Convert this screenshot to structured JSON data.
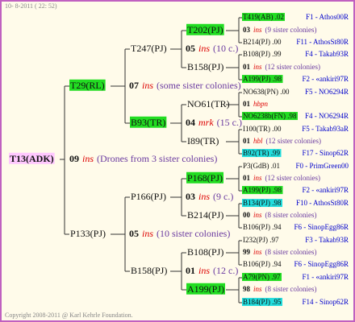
{
  "header": {
    "timestamp": "10- 8-2011 ( 22: 52)"
  },
  "root": {
    "label": "T13(ADK)",
    "highlight": "#ffc8ff",
    "num": "09",
    "mark": "ins",
    "note": "(Drones from 3 sister colonies)"
  },
  "gen1": [
    {
      "label": "T29(RL)",
      "highlight": "#22dd22",
      "num": "07",
      "mark": "ins",
      "note": "(some sister colonies)"
    },
    {
      "label": "P133(PJ)",
      "num": "05",
      "mark": "ins",
      "note": "(10 sister colonies)"
    }
  ],
  "gen2": [
    {
      "label": "T247(PJ)",
      "num": "05",
      "mark": "ins",
      "note": "(10 c.)"
    },
    {
      "label": "B93(TR)",
      "highlight": "#22dd22",
      "num": "04",
      "mark": "mrk",
      "note": "(15 c.)"
    },
    {
      "label": "P166(PJ)",
      "num": "03",
      "mark": "ins",
      "note": "(9 c.)"
    },
    {
      "label": "B158(PJ)",
      "num": "01",
      "mark": "ins",
      "note": "(12 c.)"
    }
  ],
  "gen3": [
    {
      "label": "T202(PJ)",
      "highlight": "#22dd22"
    },
    {
      "label": "B158(PJ)"
    },
    {
      "label": "NO61(TR)"
    },
    {
      "label": "I89(TR)"
    },
    {
      "label": "P168(PJ)",
      "highlight": "#22dd22"
    },
    {
      "label": "B214(PJ)"
    },
    {
      "label": "B108(PJ)"
    },
    {
      "label": "A199(PJ)",
      "highlight": "#22dd22"
    }
  ],
  "gen4": [
    {
      "top": {
        "id": "T419(AB) .02",
        "highlight": "#22dd22",
        "info": "F1 - Athos00R"
      },
      "mid": {
        "num": "03",
        "mark": "ins",
        "note": "(9 sister colonies)"
      },
      "bottom": {
        "id": "B214(PJ) .00",
        "info": "F11 - AthosSt80R"
      }
    },
    {
      "top": {
        "id": "B108(PJ) .99",
        "info": "F4 - Takab93R"
      },
      "mid": {
        "num": "01",
        "mark": "ins",
        "note": "(12 sister colonies)"
      },
      "bottom": {
        "id": "A199(PJ) .98",
        "highlight": "#22dd22",
        "info": "F2 - «ankiri97R"
      }
    },
    {
      "top": {
        "id": "NO638(PN) .00",
        "info": "F5 - NO6294R"
      },
      "mid": {
        "num": "01",
        "mark": "hbpn"
      },
      "bottom": {
        "id": "NO6238b(FN) .98",
        "highlight": "#22dd22",
        "info": "F4 - NO6294R"
      }
    },
    {
      "top": {
        "id": "I100(TR) .00",
        "info": "F5 - Takab93aR"
      },
      "mid": {
        "num": "01",
        "mark": "hbl",
        "note": "(12 sister colonies)"
      },
      "bottom": {
        "id": "B92(TR) .99",
        "highlight": "#22dddd",
        "info": "F17 - Sinop62R"
      }
    },
    {
      "top": {
        "id": "P3(GdB) .01",
        "info": "F0 - PrimGreen00"
      },
      "mid": {
        "num": "01",
        "mark": "ins",
        "note": "(12 sister colonies)"
      },
      "bottom": {
        "id": "A199(PJ) .98",
        "highlight": "#22dd22",
        "info": "F2 - «ankiri97R"
      }
    },
    {
      "top": {
        "id": "B134(PJ) .98",
        "highlight": "#22dddd",
        "info": "F10 - AthosSt80R"
      },
      "mid": {
        "num": "00",
        "mark": "ins",
        "note": "(8 sister colonies)"
      },
      "bottom": {
        "id": "B106(PJ) .94",
        "info": "F6 - SinopEgg86R"
      }
    },
    {
      "top": {
        "id": "I232(PJ) .97",
        "info": "F3 - Takab93R"
      },
      "mid": {
        "num": "99",
        "mark": "ins",
        "note": "(8 sister colonies)"
      },
      "bottom": {
        "id": "B106(PJ) .94",
        "info": "F6 - SinopEgg86R"
      }
    },
    {
      "top": {
        "id": "A79(PN) .97",
        "highlight": "#22dd22",
        "info": "F1 - «ankiri97R"
      },
      "mid": {
        "num": "98",
        "mark": "ins",
        "note": "(8 sister colonies)"
      },
      "bottom": {
        "id": "B184(PJ) .95",
        "highlight": "#22dddd",
        "info": "F14 - Sinop62R"
      }
    }
  ],
  "footer": {
    "copyright": "Copyright 2008-2011 @ Karl Kehrle Foundation."
  }
}
